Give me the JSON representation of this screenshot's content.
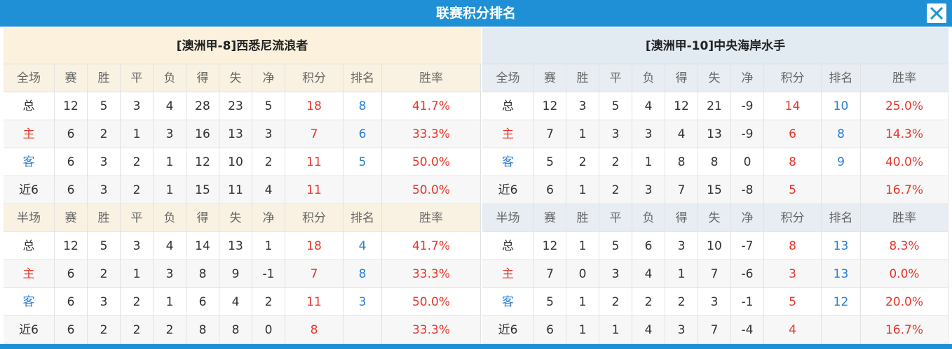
{
  "title": "联赛积分排名",
  "panels": [
    {
      "team": "[澳洲甲-8]西悉尼流浪者",
      "sections": [
        {
          "header": [
            "全场",
            "赛",
            "胜",
            "平",
            "负",
            "得",
            "失",
            "净",
            "积分",
            "排名",
            "胜率"
          ],
          "rows": [
            [
              "总",
              12,
              5,
              3,
              4,
              28,
              23,
              5,
              18,
              8,
              "41.7%"
            ],
            [
              "主",
              6,
              2,
              1,
              3,
              16,
              13,
              3,
              7,
              6,
              "33.3%"
            ],
            [
              "客",
              6,
              3,
              2,
              1,
              12,
              10,
              2,
              11,
              5,
              "50.0%"
            ],
            [
              "近6",
              6,
              3,
              2,
              1,
              15,
              11,
              4,
              11,
              null,
              "50.0%"
            ]
          ]
        },
        {
          "header": [
            "半场",
            "赛",
            "胜",
            "平",
            "负",
            "得",
            "失",
            "净",
            "积分",
            "排名",
            "胜率"
          ],
          "rows": [
            [
              "总",
              12,
              5,
              3,
              4,
              14,
              13,
              1,
              18,
              4,
              "41.7%"
            ],
            [
              "主",
              6,
              2,
              1,
              3,
              8,
              9,
              -1,
              7,
              8,
              "33.3%"
            ],
            [
              "客",
              6,
              3,
              2,
              1,
              6,
              4,
              2,
              11,
              3,
              "50.0%"
            ],
            [
              "近6",
              6,
              2,
              2,
              2,
              8,
              8,
              0,
              8,
              null,
              "33.3%"
            ]
          ]
        }
      ]
    },
    {
      "team": "[澳洲甲-10]中央海岸水手",
      "sections": [
        {
          "header": [
            "全场",
            "赛",
            "胜",
            "平",
            "负",
            "得",
            "失",
            "净",
            "积分",
            "排名",
            "胜率"
          ],
          "rows": [
            [
              "总",
              12,
              3,
              5,
              4,
              12,
              21,
              -9,
              14,
              10,
              "25.0%"
            ],
            [
              "主",
              7,
              1,
              3,
              3,
              4,
              13,
              -9,
              6,
              8,
              "14.3%"
            ],
            [
              "客",
              5,
              2,
              2,
              1,
              8,
              8,
              0,
              8,
              9,
              "40.0%"
            ],
            [
              "近6",
              6,
              1,
              2,
              3,
              7,
              15,
              -8,
              5,
              null,
              "16.7%"
            ]
          ]
        },
        {
          "header": [
            "半场",
            "赛",
            "胜",
            "平",
            "负",
            "得",
            "失",
            "净",
            "积分",
            "排名",
            "胜率"
          ],
          "rows": [
            [
              "总",
              12,
              1,
              5,
              6,
              3,
              10,
              -7,
              8,
              13,
              "8.3%"
            ],
            [
              "主",
              7,
              0,
              3,
              4,
              1,
              7,
              -6,
              3,
              13,
              "0.0%"
            ],
            [
              "客",
              5,
              1,
              2,
              2,
              2,
              3,
              -1,
              5,
              12,
              "20.0%"
            ],
            [
              "近6",
              6,
              1,
              1,
              4,
              3,
              7,
              -4,
              4,
              null,
              "16.7%"
            ]
          ]
        }
      ]
    }
  ]
}
